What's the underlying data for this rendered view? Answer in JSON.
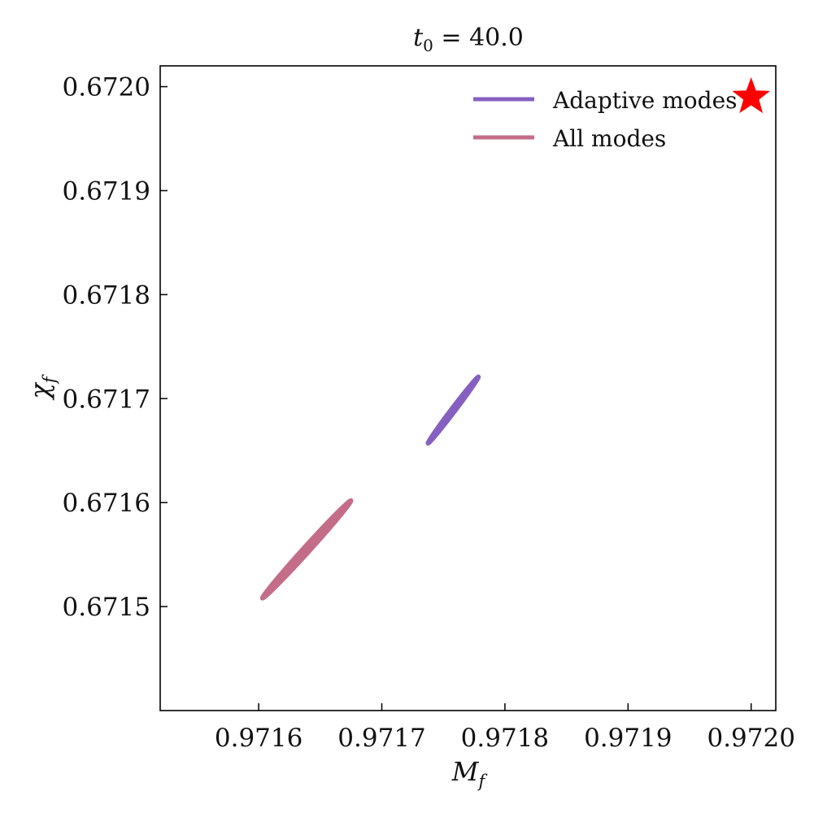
{
  "chart_data": {
    "type": "contour",
    "title": "t₀ = 40.0",
    "xlabel": "M",
    "xlabel_sub": "f",
    "ylabel": "χ",
    "ylabel_sub": "f",
    "xlim": [
      0.97152,
      0.97202
    ],
    "ylim": [
      0.6714,
      0.67202
    ],
    "xticks": [
      0.9716,
      0.9717,
      0.9718,
      0.9719,
      0.972
    ],
    "xtick_labels": [
      "0.9716",
      "0.9717",
      "0.9718",
      "0.9719",
      "0.9720"
    ],
    "yticks": [
      0.6715,
      0.6716,
      0.6717,
      0.6718,
      0.6719,
      0.672
    ],
    "ytick_labels": [
      "0.6715",
      "0.6716",
      "0.6717",
      "0.6718",
      "0.6719",
      "0.6720"
    ],
    "legend_position": "top-right",
    "series": [
      {
        "name": "Adaptive modes",
        "color": "#8660c0",
        "contours": [
          {
            "center": [
              0.971758,
              0.671689
            ],
            "end_a": [
              0.971738,
              0.671657
            ],
            "end_b": [
              0.971779,
              0.671721
            ],
            "half_width": 1.6e-06
          },
          {
            "center": [
              0.971757,
              0.671688
            ],
            "end_a": [
              0.971742,
              0.671664
            ],
            "end_b": [
              0.971773,
              0.671712
            ],
            "half_width": 7e-07
          }
        ]
      },
      {
        "name": "All modes",
        "color": "#c46d88",
        "contours": [
          {
            "center": [
              0.971639,
              0.671555
            ],
            "end_a": [
              0.971603,
              0.671508
            ],
            "end_b": [
              0.971675,
              0.671602
            ],
            "half_width": 2.5e-06
          },
          {
            "center": [
              0.97164,
              0.671556
            ],
            "end_a": [
              0.971612,
              0.67152
            ],
            "end_b": [
              0.971668,
              0.671592
            ],
            "half_width": 1e-06
          }
        ]
      }
    ],
    "marker": {
      "shape": "star",
      "color": "#ff0000",
      "x": 0.972,
      "y": 0.67199
    }
  }
}
